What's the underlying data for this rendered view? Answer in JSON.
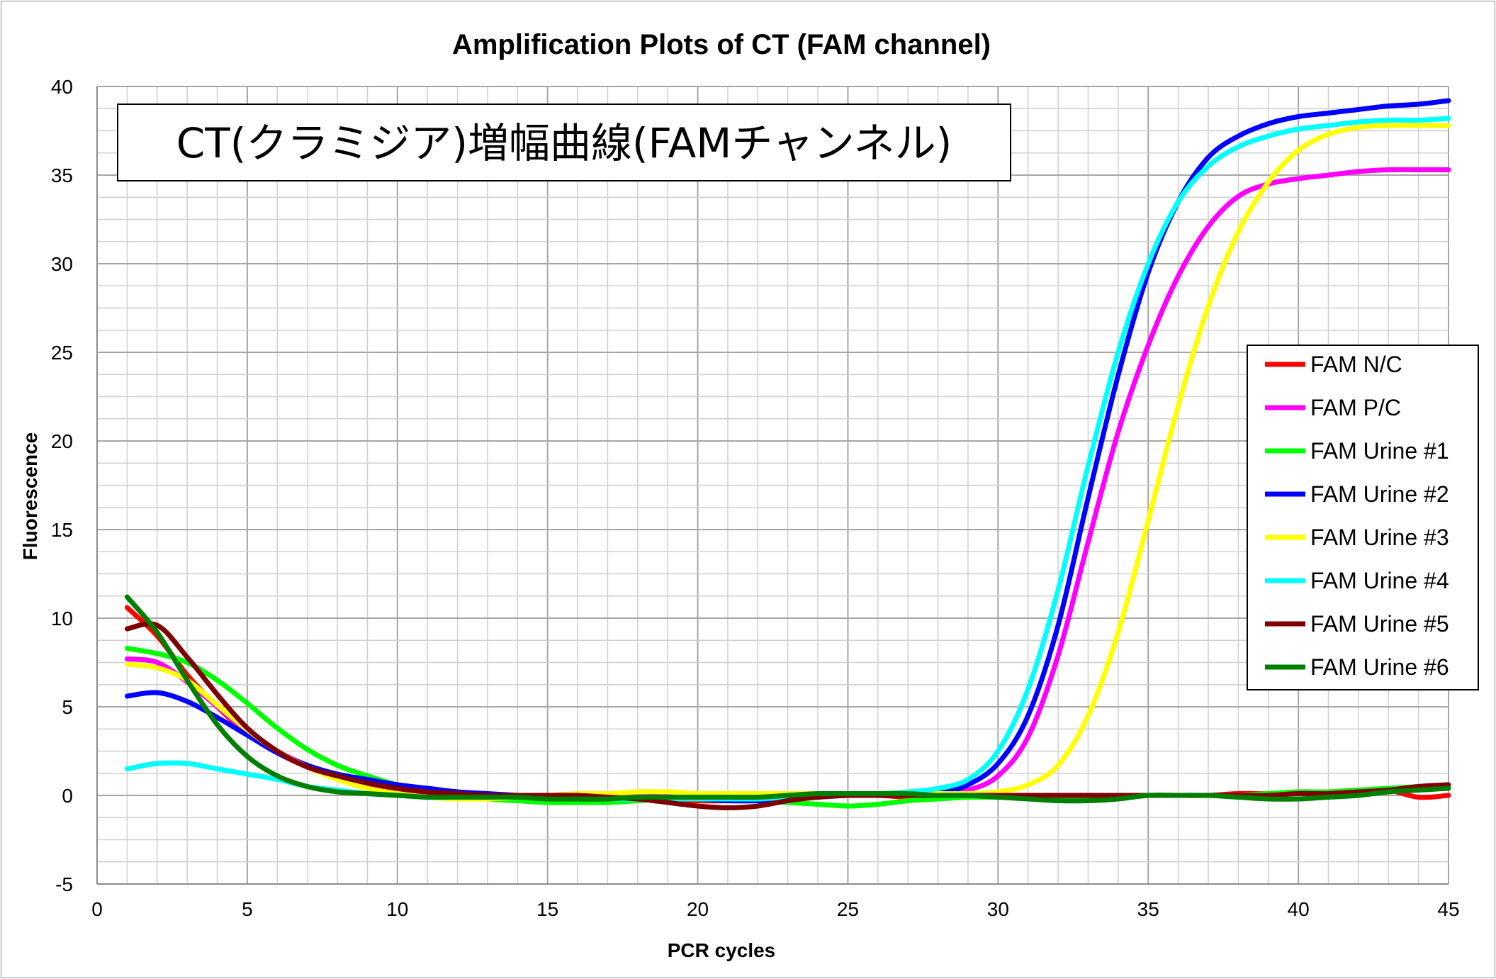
{
  "chart_data": {
    "type": "line",
    "title": "Amplification Plots of CT (FAM channel)",
    "annotation": "CT(クラミジア)増幅曲線(FAMチャンネル)",
    "xlabel": "PCR cycles",
    "ylabel": "Fluorescence",
    "xlim": [
      0,
      45
    ],
    "ylim": [
      -5,
      40
    ],
    "xticks": [
      0,
      5,
      10,
      15,
      20,
      25,
      30,
      35,
      40,
      45
    ],
    "yticks": [
      -5,
      0,
      5,
      10,
      15,
      20,
      25,
      30,
      35,
      40
    ],
    "grid": "major and minor",
    "legend_position": "right",
    "x": [
      1,
      2,
      3,
      4,
      5,
      6,
      7,
      8,
      9,
      10,
      11,
      12,
      13,
      14,
      15,
      16,
      17,
      18,
      19,
      20,
      21,
      22,
      23,
      24,
      25,
      26,
      27,
      28,
      29,
      30,
      31,
      32,
      33,
      34,
      35,
      36,
      37,
      38,
      39,
      40,
      41,
      42,
      43,
      44,
      45
    ],
    "series": [
      {
        "name": "FAM N/C",
        "color": "#ff0000",
        "values": [
          10.6,
          9.0,
          6.8,
          5.0,
          3.5,
          2.4,
          1.6,
          1.0,
          0.6,
          0.3,
          0.1,
          0.0,
          0.0,
          0.0,
          0.0,
          0.0,
          -0.1,
          -0.1,
          -0.2,
          -0.3,
          -0.3,
          -0.2,
          -0.1,
          0.0,
          0.0,
          0.0,
          -0.1,
          -0.1,
          -0.1,
          -0.1,
          -0.1,
          -0.1,
          -0.1,
          -0.1,
          0.0,
          0.0,
          0.0,
          0.1,
          0.1,
          0.2,
          0.2,
          0.3,
          0.3,
          -0.1,
          0.0
        ]
      },
      {
        "name": "FAM P/C",
        "color": "#ff00ff",
        "values": [
          7.7,
          7.5,
          6.4,
          5.0,
          3.6,
          2.5,
          1.7,
          1.1,
          0.7,
          0.4,
          0.2,
          0.1,
          0.0,
          0.0,
          0.0,
          0.0,
          0.0,
          0.0,
          0.0,
          0.0,
          0.0,
          0.0,
          0.0,
          0.0,
          0.0,
          0.0,
          0.0,
          0.1,
          0.3,
          1.1,
          3.3,
          7.9,
          14.3,
          20.5,
          25.4,
          29.3,
          32.1,
          33.8,
          34.5,
          34.8,
          35.0,
          35.2,
          35.3,
          35.3,
          35.3
        ]
      },
      {
        "name": "FAM Urine #1",
        "color": "#00ff00",
        "values": [
          8.3,
          8.0,
          7.5,
          6.5,
          5.2,
          3.8,
          2.6,
          1.7,
          1.1,
          0.6,
          0.3,
          0.0,
          -0.2,
          -0.3,
          -0.4,
          -0.4,
          -0.4,
          -0.3,
          -0.2,
          -0.2,
          -0.3,
          -0.3,
          -0.4,
          -0.5,
          -0.6,
          -0.5,
          -0.3,
          -0.2,
          -0.1,
          -0.1,
          -0.1,
          -0.1,
          -0.1,
          -0.1,
          0.0,
          0.0,
          0.0,
          0.0,
          0.1,
          0.2,
          0.2,
          0.3,
          0.4,
          0.5,
          0.6
        ]
      },
      {
        "name": "FAM Urine #2",
        "color": "#0000ff",
        "values": [
          5.6,
          5.8,
          5.3,
          4.4,
          3.4,
          2.4,
          1.7,
          1.2,
          0.9,
          0.6,
          0.4,
          0.2,
          0.1,
          0.0,
          -0.1,
          -0.2,
          -0.2,
          -0.2,
          -0.2,
          -0.2,
          -0.3,
          -0.3,
          -0.2,
          -0.1,
          0.0,
          0.0,
          0.0,
          0.1,
          0.6,
          1.8,
          4.5,
          9.6,
          16.8,
          23.7,
          29.5,
          33.5,
          36.0,
          37.2,
          37.9,
          38.3,
          38.5,
          38.7,
          38.9,
          39.0,
          39.2
        ]
      },
      {
        "name": "FAM Urine #3",
        "color": "#ffff00",
        "values": [
          7.4,
          7.2,
          6.5,
          5.1,
          3.7,
          2.5,
          1.6,
          0.9,
          0.4,
          0.1,
          -0.1,
          -0.2,
          -0.2,
          -0.1,
          0.0,
          0.1,
          0.1,
          0.2,
          0.2,
          0.1,
          0.1,
          0.1,
          0.1,
          0.1,
          0.1,
          0.1,
          0.1,
          0.1,
          0.1,
          0.2,
          0.6,
          1.7,
          4.5,
          9.2,
          15.5,
          22.0,
          27.6,
          31.8,
          34.6,
          36.4,
          37.3,
          37.7,
          37.8,
          37.8,
          37.8
        ]
      },
      {
        "name": "FAM Urine #4",
        "color": "#00ffff",
        "values": [
          1.5,
          1.8,
          1.8,
          1.5,
          1.2,
          0.9,
          0.5,
          0.3,
          0.1,
          0.0,
          -0.1,
          -0.1,
          -0.1,
          -0.1,
          -0.2,
          -0.2,
          -0.2,
          -0.2,
          -0.2,
          -0.2,
          -0.2,
          -0.2,
          -0.1,
          0.0,
          0.1,
          0.1,
          0.2,
          0.4,
          0.9,
          2.5,
          6.0,
          11.6,
          18.6,
          25.0,
          30.0,
          33.5,
          35.5,
          36.6,
          37.2,
          37.6,
          37.8,
          38.0,
          38.1,
          38.1,
          38.2
        ]
      },
      {
        "name": "FAM Urine #5",
        "color": "#7f0000",
        "values": [
          9.4,
          9.6,
          7.8,
          5.7,
          3.8,
          2.5,
          1.6,
          1.1,
          0.7,
          0.4,
          0.2,
          0.1,
          0.0,
          0.0,
          0.0,
          0.0,
          -0.1,
          -0.2,
          -0.4,
          -0.6,
          -0.7,
          -0.6,
          -0.3,
          -0.1,
          0.0,
          0.0,
          0.0,
          0.0,
          0.0,
          0.0,
          0.0,
          0.0,
          0.0,
          0.0,
          0.0,
          0.0,
          0.0,
          0.0,
          0.0,
          0.1,
          0.1,
          0.2,
          0.3,
          0.5,
          0.6
        ]
      },
      {
        "name": "FAM Urine #6",
        "color": "#007f00",
        "values": [
          11.2,
          9.2,
          6.5,
          4.0,
          2.2,
          1.1,
          0.5,
          0.2,
          0.1,
          0.0,
          -0.1,
          -0.1,
          -0.1,
          -0.1,
          -0.2,
          -0.2,
          -0.2,
          -0.1,
          -0.1,
          -0.1,
          -0.1,
          -0.1,
          0.0,
          0.1,
          0.1,
          0.1,
          0.1,
          0.0,
          0.0,
          -0.1,
          -0.2,
          -0.3,
          -0.3,
          -0.2,
          0.0,
          0.0,
          0.0,
          -0.1,
          -0.2,
          -0.2,
          -0.1,
          0.0,
          0.2,
          0.3,
          0.4
        ]
      }
    ]
  }
}
